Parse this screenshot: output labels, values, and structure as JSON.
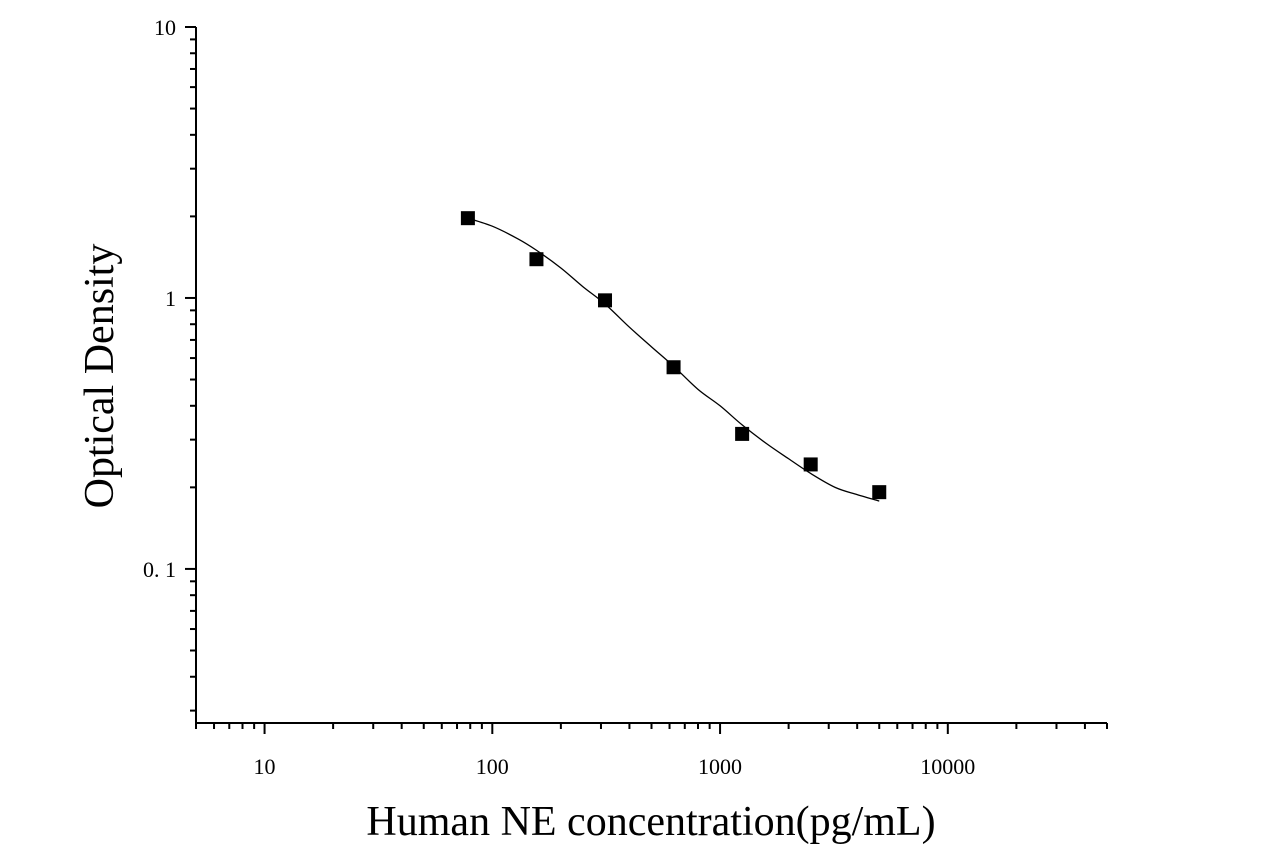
{
  "chart_data": {
    "type": "scatter",
    "title": "",
    "xlabel": "Human NE concentration(pg/mL)",
    "ylabel": "Optical Density",
    "x_scale": "log",
    "y_scale": "log",
    "xlim": [
      5,
      50000
    ],
    "ylim": [
      0.027,
      10
    ],
    "x_ticks": [
      {
        "value": 10,
        "label": "10"
      },
      {
        "value": 100,
        "label": "100"
      },
      {
        "value": 1000,
        "label": "1000"
      },
      {
        "value": 10000,
        "label": "10000"
      }
    ],
    "y_ticks": [
      {
        "value": 0.1,
        "label": "0. 1"
      },
      {
        "value": 1,
        "label": "1"
      },
      {
        "value": 10,
        "label": "10"
      }
    ],
    "grid": false,
    "legend": "none",
    "points": {
      "x": [
        78.125,
        156.25,
        312.5,
        625,
        1250,
        2500,
        5000
      ],
      "y": [
        1.97,
        1.39,
        0.98,
        0.555,
        0.315,
        0.243,
        0.192
      ]
    },
    "fit_curve": {
      "type": "4PL",
      "x": [
        78.125,
        100,
        130,
        156.25,
        200,
        250,
        312.5,
        400,
        500,
        625,
        800,
        1000,
        1250,
        1600,
        2000,
        2500,
        3200,
        4000,
        5000
      ],
      "y": [
        1.97,
        1.84,
        1.65,
        1.5,
        1.29,
        1.1,
        0.95,
        0.78,
        0.66,
        0.56,
        0.46,
        0.4,
        0.34,
        0.29,
        0.255,
        0.225,
        0.2,
        0.188,
        0.178
      ]
    },
    "colors": {
      "marker": "#000000",
      "line": "#000000",
      "axis": "#000000",
      "background": "#ffffff"
    },
    "marker_shape": "square"
  }
}
